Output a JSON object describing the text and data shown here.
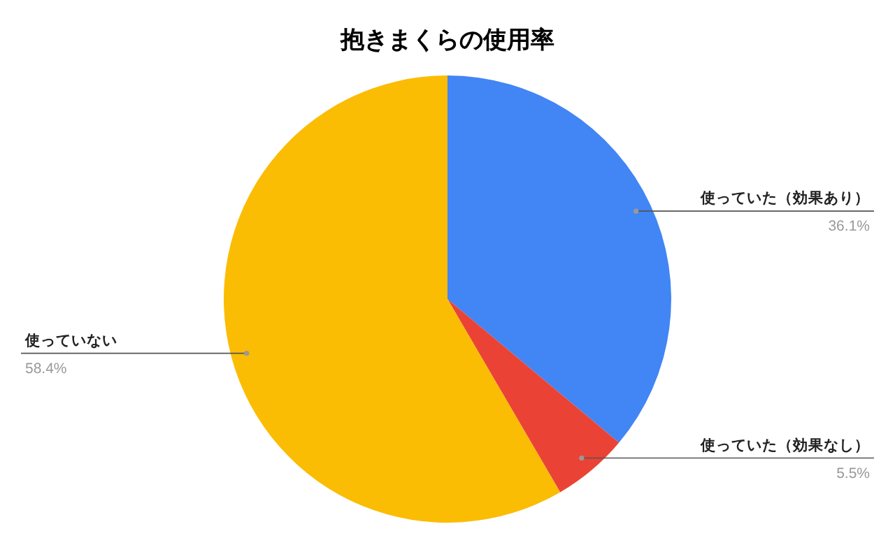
{
  "chart_data": {
    "type": "pie",
    "title": "抱きまくらの使用率",
    "categories": [
      "使っていた（効果あり）",
      "使っていた（効果なし）",
      "使っていない"
    ],
    "values": [
      36.1,
      5.5,
      58.4
    ],
    "colors": [
      "#4285f4",
      "#ea4335",
      "#fbbc04"
    ],
    "value_labels": [
      "36.1%",
      "5.5%",
      "58.4%"
    ]
  }
}
